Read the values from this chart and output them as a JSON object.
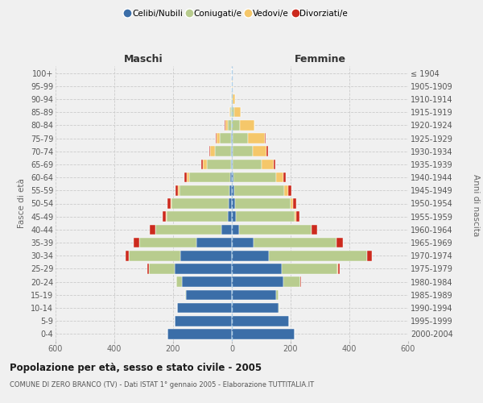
{
  "age_groups": [
    "0-4",
    "5-9",
    "10-14",
    "15-19",
    "20-24",
    "25-29",
    "30-34",
    "35-39",
    "40-44",
    "45-49",
    "50-54",
    "55-59",
    "60-64",
    "65-69",
    "70-74",
    "75-79",
    "80-84",
    "85-89",
    "90-94",
    "95-99",
    "100+"
  ],
  "birth_years": [
    "2000-2004",
    "1995-1999",
    "1990-1994",
    "1985-1989",
    "1980-1984",
    "1975-1979",
    "1970-1974",
    "1965-1969",
    "1960-1964",
    "1955-1959",
    "1950-1954",
    "1945-1949",
    "1940-1944",
    "1935-1939",
    "1930-1934",
    "1925-1929",
    "1920-1924",
    "1915-1919",
    "1910-1914",
    "1905-1909",
    "≤ 1904"
  ],
  "maschi": {
    "celibe": [
      220,
      195,
      185,
      155,
      170,
      195,
      175,
      120,
      35,
      13,
      10,
      8,
      5,
      4,
      3,
      2,
      0,
      0,
      0,
      0,
      0
    ],
    "coniugato": [
      0,
      0,
      2,
      5,
      18,
      88,
      175,
      195,
      225,
      210,
      195,
      170,
      140,
      82,
      55,
      38,
      15,
      5,
      2,
      1,
      0
    ],
    "vedovo": [
      0,
      0,
      0,
      0,
      0,
      0,
      0,
      1,
      1,
      2,
      3,
      5,
      8,
      12,
      15,
      12,
      8,
      3,
      1,
      0,
      0
    ],
    "divorziato": [
      0,
      0,
      0,
      0,
      2,
      5,
      12,
      18,
      18,
      10,
      10,
      10,
      9,
      5,
      4,
      3,
      1,
      0,
      0,
      0,
      0
    ]
  },
  "femmine": {
    "nubile": [
      215,
      195,
      160,
      150,
      175,
      170,
      125,
      75,
      25,
      13,
      10,
      8,
      5,
      4,
      2,
      2,
      0,
      0,
      0,
      0,
      0
    ],
    "coniugata": [
      0,
      0,
      2,
      10,
      58,
      190,
      335,
      280,
      245,
      200,
      190,
      170,
      145,
      98,
      68,
      52,
      28,
      8,
      3,
      1,
      0
    ],
    "vedova": [
      0,
      0,
      0,
      0,
      0,
      1,
      1,
      2,
      2,
      5,
      8,
      14,
      24,
      40,
      48,
      58,
      48,
      22,
      9,
      3,
      0
    ],
    "divorziata": [
      0,
      0,
      0,
      0,
      2,
      6,
      15,
      20,
      18,
      12,
      12,
      12,
      10,
      7,
      5,
      4,
      2,
      1,
      0,
      0,
      0
    ]
  },
  "colors": {
    "celibe": "#3b6ea8",
    "coniugato": "#b8cc8e",
    "vedovo": "#f5c76a",
    "divorziato": "#cc2a1e"
  },
  "legend_labels": [
    "Celibi/Nubili",
    "Coniugati/e",
    "Vedovi/e",
    "Divorziati/e"
  ],
  "title": "Popolazione per età, sesso e stato civile - 2005",
  "subtitle": "COMUNE DI ZERO BRANCO (TV) - Dati ISTAT 1° gennaio 2005 - Elaborazione TUTTITALIA.IT",
  "maschi_label": "Maschi",
  "femmine_label": "Femmine",
  "ylabel_left": "Fasce di età",
  "ylabel_right": "Anni di nascita",
  "xlim": 600,
  "bg_color": "#f0f0f0"
}
